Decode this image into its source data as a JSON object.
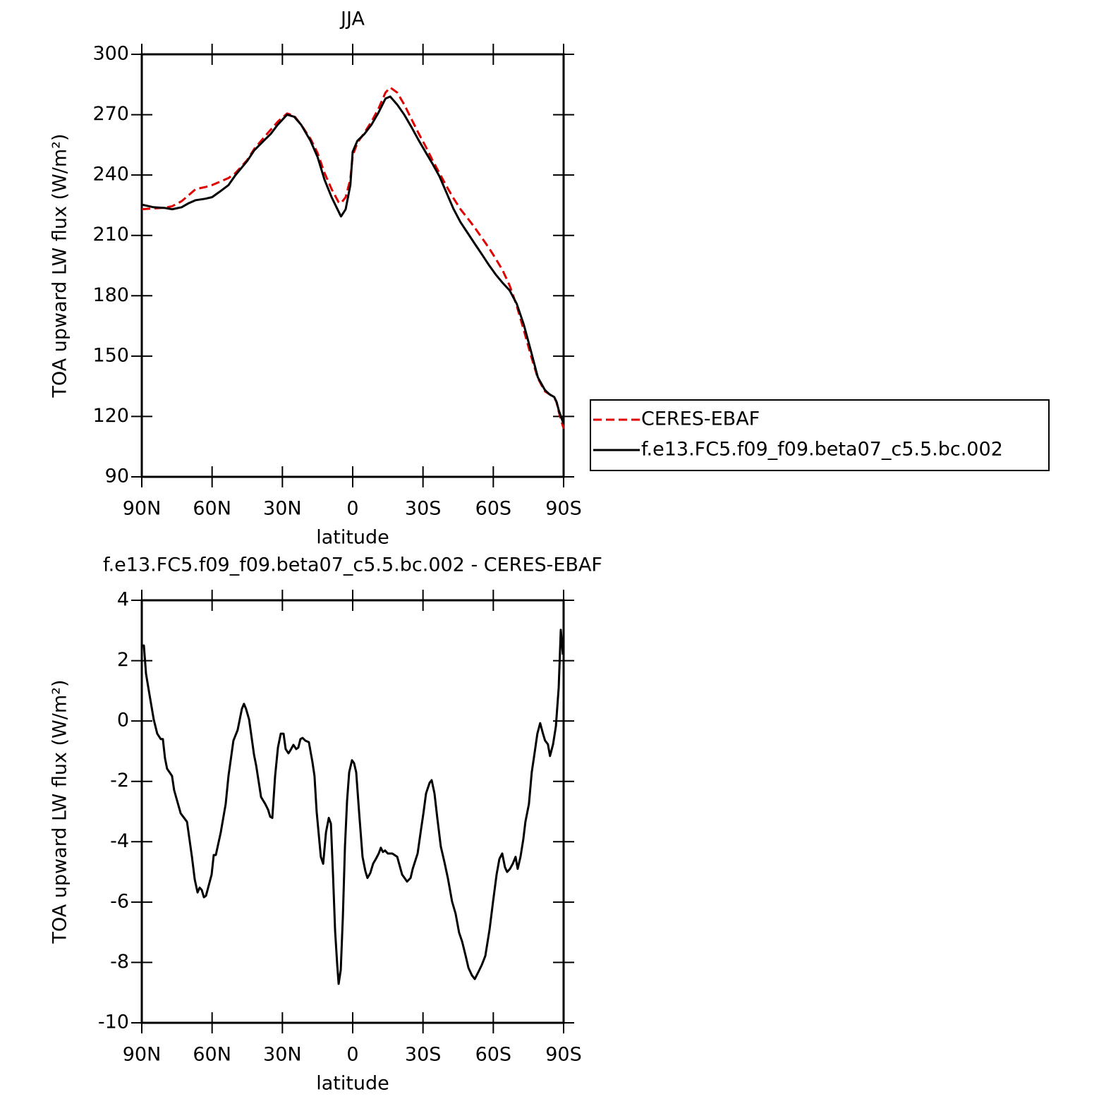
{
  "chart_data": [
    {
      "type": "line",
      "title": "JJA",
      "xlabel": "latitude",
      "ylabel": "TOA upward LW flux (W/m²)",
      "xlim": [
        90,
        -90
      ],
      "ylim": [
        90,
        300
      ],
      "xticks": [
        {
          "value": 90,
          "label": "90N"
        },
        {
          "value": 60,
          "label": "60N"
        },
        {
          "value": 30,
          "label": "30N"
        },
        0,
        {
          "value": -30,
          "label": "30S"
        },
        {
          "value": -60,
          "label": "60S"
        },
        {
          "value": -90,
          "label": "90S"
        }
      ],
      "yticks": [
        90,
        120,
        150,
        180,
        210,
        240,
        270,
        300
      ],
      "legend": "right",
      "x": [
        90,
        85,
        80,
        77,
        73,
        70,
        67,
        63,
        60,
        57,
        53,
        50,
        45,
        42,
        38,
        35,
        32,
        28,
        25,
        22,
        18,
        15,
        12,
        9,
        6,
        5,
        3,
        1,
        0,
        -2,
        -5,
        -8,
        -11,
        -14,
        -16,
        -19,
        -22,
        -25,
        -28,
        -31,
        -34,
        -37,
        -40,
        -43,
        -46,
        -49,
        -52,
        -55,
        -58,
        -61,
        -64,
        -67,
        -70,
        -73,
        -76,
        -79,
        -82,
        -84,
        -86,
        -87,
        -88,
        -90
      ],
      "series": [
        {
          "name": "CERES-EBAF",
          "color": "#e00000",
          "linestyle": "dashed",
          "values": [
            223,
            223.4,
            223.8,
            224.5,
            227,
            230,
            233,
            234,
            235,
            236.5,
            238.5,
            241,
            247.5,
            253,
            258.5,
            262.5,
            266.5,
            270.6,
            269.5,
            265,
            258,
            251,
            241,
            233,
            226.5,
            226,
            229,
            238,
            249.6,
            256,
            261,
            266.5,
            273,
            281,
            283.5,
            281,
            275,
            268,
            261,
            254.5,
            247.5,
            241,
            234.5,
            228.5,
            223,
            218.6,
            214,
            209,
            204,
            198.5,
            192.6,
            185,
            175,
            163,
            150.5,
            139,
            132.5,
            131,
            129.5,
            127,
            122,
            114
          ]
        },
        {
          "name": "f.e13.FC5.f09_f09.beta07_c5.5.bc.002",
          "color": "#000000",
          "linestyle": "solid",
          "values": [
            225.3,
            224,
            223.6,
            223,
            224,
            226,
            227.5,
            228.2,
            229,
            231.5,
            235,
            240,
            247,
            252.3,
            257,
            260.4,
            265,
            270,
            269,
            265,
            257,
            249,
            237.6,
            229,
            221.8,
            219.4,
            223,
            235,
            251.6,
            257,
            260.4,
            265,
            271,
            278,
            279,
            275,
            270,
            264,
            257.6,
            251.6,
            245.7,
            239.4,
            231.3,
            223.2,
            216.6,
            211.3,
            206,
            200.8,
            195.5,
            190.6,
            186.4,
            182.6,
            176,
            165.7,
            152.8,
            139.5,
            133.2,
            131,
            129.7,
            127.3,
            122.8,
            116.3
          ]
        }
      ]
    },
    {
      "type": "line",
      "title": "f.e13.FC5.f09_f09.beta07_c5.5.bc.002 - CERES-EBAF",
      "xlabel": "latitude",
      "ylabel": "TOA upward LW flux (W/m²)",
      "xlim": [
        90,
        -90
      ],
      "ylim": [
        -10,
        4
      ],
      "xticks": [
        {
          "value": 90,
          "label": "90N"
        },
        {
          "value": 60,
          "label": "60N"
        },
        {
          "value": 30,
          "label": "30N"
        },
        0,
        {
          "value": -30,
          "label": "30S"
        },
        {
          "value": -60,
          "label": "60S"
        },
        {
          "value": -90,
          "label": "90S"
        }
      ],
      "yticks": [
        -10,
        -8,
        -6,
        -4,
        -2,
        0,
        2,
        4
      ],
      "x": [
        90,
        89.1,
        88.2,
        86.7,
        84.9,
        83.4,
        81.9,
        81.0,
        80.1,
        79.2,
        77.1,
        76.2,
        73.4,
        70.7,
        68.6,
        67.4,
        66.2,
        65.3,
        64.4,
        63.5,
        62.6,
        60.2,
        59.3,
        58.4,
        56.3,
        54.2,
        53.0,
        50.9,
        49.1,
        48.2,
        47.3,
        46.4,
        45.5,
        44.2,
        42.1,
        41.2,
        39.1,
        37.3,
        36.1,
        35.2,
        34.3,
        33.1,
        31.9,
        30.7,
        29.5,
        28.6,
        27.4,
        26.5,
        25.3,
        24.1,
        23.2,
        22.3,
        21.4,
        20.2,
        18.7,
        17.2,
        16.3,
        15.4,
        13.6,
        12.6,
        11.4,
        10.2,
        9.3,
        8.4,
        7.5,
        6.6,
        6.0,
        5.1,
        4.2,
        3.3,
        2.4,
        1.5,
        0.3,
        -0.6,
        -1.5,
        -2.7,
        -4.2,
        -5.4,
        -6.3,
        -7.5,
        -8.7,
        -9.9,
        -11.1,
        -12.0,
        -12.9,
        -13.8,
        -15.0,
        -16.9,
        -19.0,
        -21.1,
        -23.2,
        -24.7,
        -25.6,
        -27.7,
        -29.2,
        -30.1,
        -31.3,
        -32.8,
        -33.7,
        -34.9,
        -36.1,
        -37.6,
        -39.1,
        -40.6,
        -42.4,
        -43.9,
        -45.4,
        -46.7,
        -48.2,
        -49.4,
        -50.9,
        -52.1,
        -53.6,
        -55.1,
        -56.6,
        -58.4,
        -59.9,
        -61.4,
        -62.6,
        -63.8,
        -65.0,
        -65.9,
        -67.1,
        -68.3,
        -69.5,
        -70.4,
        -71.6,
        -72.8,
        -73.7,
        -75.2,
        -76.4,
        -77.6,
        -78.8,
        -80.0,
        -81.2,
        -82.1,
        -83.3,
        -84.2,
        -85.5,
        -86.7,
        -87.9,
        -88.8,
        -89.7
      ],
      "series": [
        {
          "color": "#000000",
          "linestyle": "solid",
          "values": [
            2.5,
            2.5,
            1.57,
            0.87,
            0.05,
            -0.42,
            -0.6,
            -0.6,
            -1.23,
            -1.58,
            -1.82,
            -2.29,
            -3.06,
            -3.34,
            -4.5,
            -5.25,
            -5.68,
            -5.52,
            -5.6,
            -5.84,
            -5.79,
            -5.09,
            -4.44,
            -4.44,
            -3.69,
            -2.75,
            -1.82,
            -0.65,
            -0.3,
            0.05,
            0.4,
            0.57,
            0.4,
            0.05,
            -1.12,
            -1.47,
            -2.52,
            -2.75,
            -2.94,
            -3.17,
            -3.21,
            -1.82,
            -0.88,
            -0.42,
            -0.42,
            -0.93,
            -1.07,
            -0.96,
            -0.79,
            -0.93,
            -0.88,
            -0.6,
            -0.56,
            -0.65,
            -0.7,
            -1.35,
            -1.82,
            -2.99,
            -4.5,
            -4.73,
            -3.69,
            -3.21,
            -3.4,
            -5.09,
            -6.96,
            -8.08,
            -8.71,
            -8.25,
            -6.5,
            -4.16,
            -2.64,
            -1.7,
            -1.3,
            -1.4,
            -1.7,
            -2.99,
            -4.5,
            -4.97,
            -5.2,
            -5.04,
            -4.73,
            -4.57,
            -4.39,
            -4.2,
            -4.34,
            -4.29,
            -4.39,
            -4.39,
            -4.5,
            -5.09,
            -5.32,
            -5.2,
            -4.9,
            -4.39,
            -3.57,
            -3.1,
            -2.4,
            -2.05,
            -1.96,
            -2.4,
            -3.21,
            -4.16,
            -4.66,
            -5.2,
            -5.98,
            -6.38,
            -7.01,
            -7.31,
            -7.78,
            -8.18,
            -8.43,
            -8.55,
            -8.32,
            -8.08,
            -7.78,
            -6.91,
            -5.98,
            -5.09,
            -4.57,
            -4.39,
            -4.85,
            -5.0,
            -4.9,
            -4.73,
            -4.5,
            -4.9,
            -4.5,
            -3.92,
            -3.34,
            -2.75,
            -1.7,
            -1.07,
            -0.42,
            -0.07,
            -0.42,
            -0.65,
            -0.77,
            -1.16,
            -0.77,
            -0.18,
            1.1,
            3.02,
            2.2
          ]
        }
      ]
    }
  ]
}
